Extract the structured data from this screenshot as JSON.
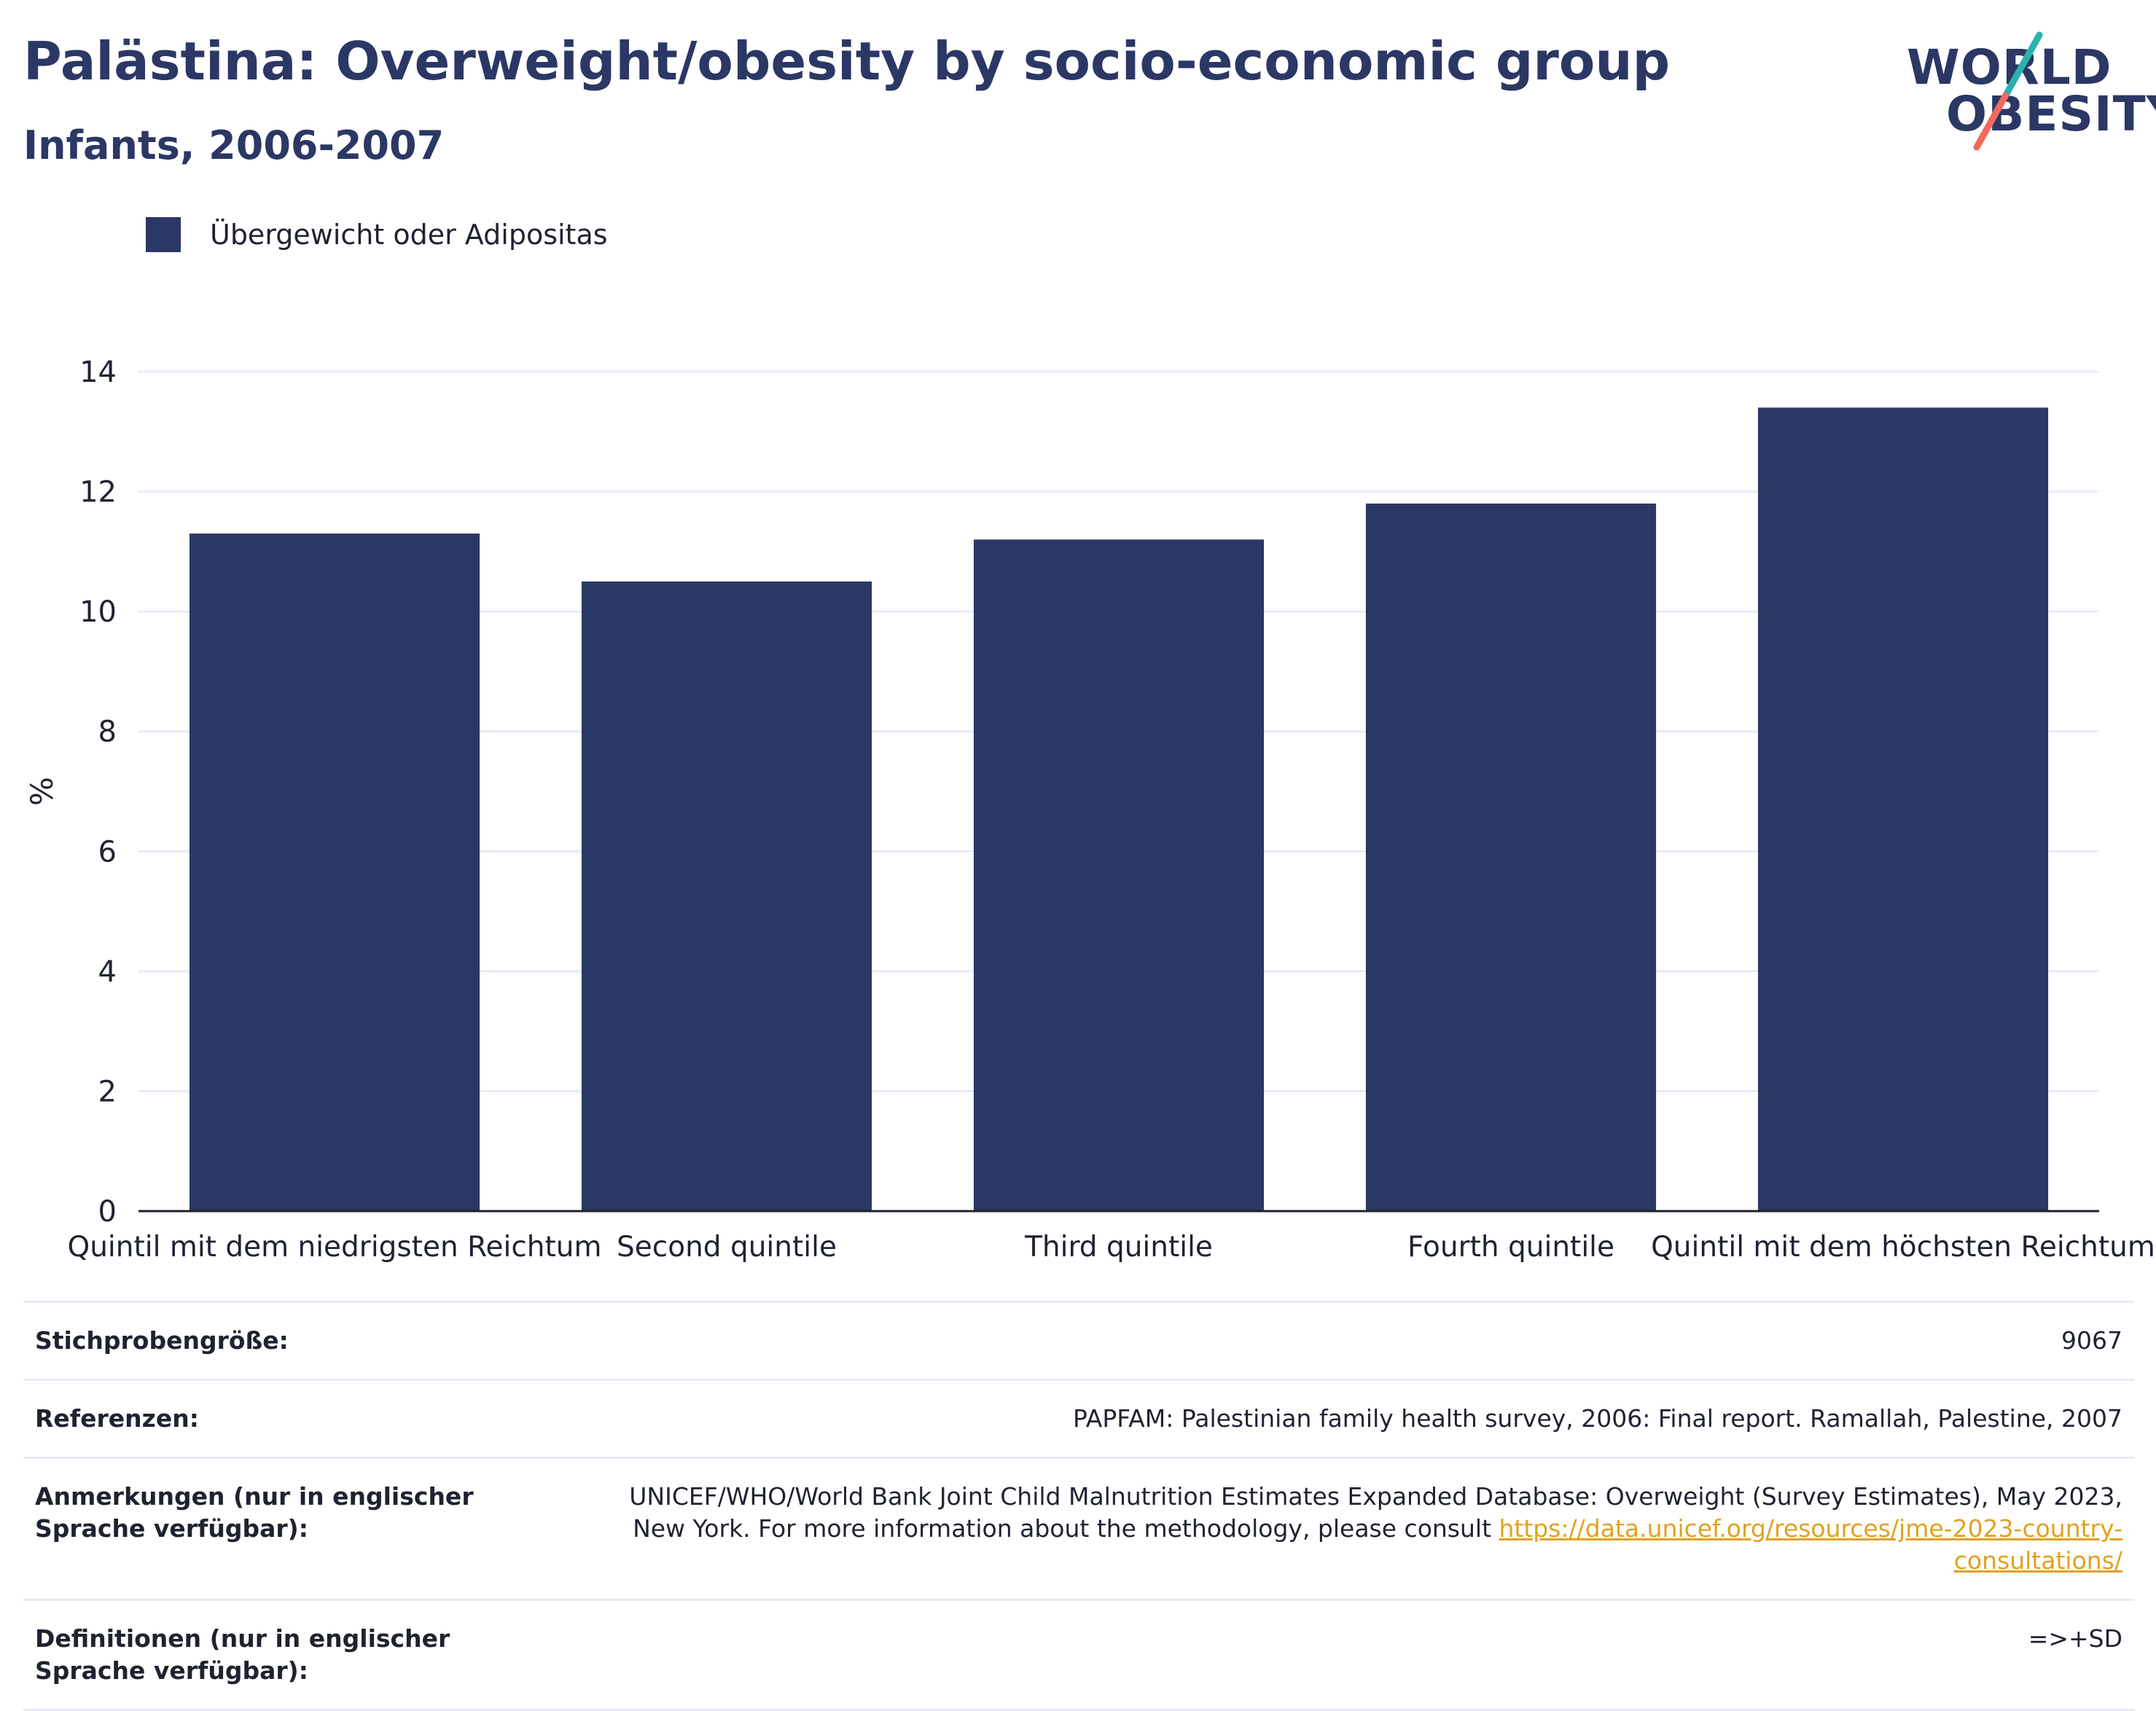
{
  "header": {
    "title": "Palästina: Overweight/obesity by socio-economic group",
    "subtitle": "Infants, 2006-2007"
  },
  "logo": {
    "line1": "WORLD",
    "line2": "OBESITY"
  },
  "legend": {
    "label": "Übergewicht oder Adipositas"
  },
  "chart_data": {
    "type": "bar",
    "categories": [
      "Quintil mit dem niedrigsten Reichtum",
      "Second quintile",
      "Third quintile",
      "Fourth quintile",
      "Quintil mit dem höchsten Reichtum"
    ],
    "series": [
      {
        "name": "Übergewicht oder Adipositas",
        "values": [
          11.3,
          10.5,
          11.2,
          11.8,
          13.4
        ]
      }
    ],
    "ylabel": "%",
    "ylim": [
      0,
      14
    ],
    "yticks": [
      0,
      2,
      4,
      6,
      8,
      10,
      12,
      14
    ],
    "grid": true,
    "legend_position": "top-left",
    "bar_color": "#2b3765"
  },
  "info_table": [
    {
      "label": "Stichprobengröße:",
      "value": "9067"
    },
    {
      "label": "Referenzen:",
      "value": "PAPFAM: Palestinian family health survey, 2006: Final report. Ramallah, Palestine, 2007"
    },
    {
      "label": "Anmerkungen (nur in englischer Sprache verfügbar):",
      "value": "UNICEF/WHO/World Bank Joint Child Malnutrition Estimates Expanded Database: Overweight (Survey Estimates), May 2023, New York. For more information about the methodology, please consult ",
      "link": "https://data.unicef.org/resources/jme-2023-country-consultations/"
    },
    {
      "label": "Definitionen (nur in englischer Sprache verfügbar):",
      "value": "=>+SD"
    }
  ],
  "colors": {
    "accent": "#2b3765",
    "link": "#e0a21f",
    "logo_teal": "#2ab3ae",
    "logo_coral": "#f06a5d"
  }
}
